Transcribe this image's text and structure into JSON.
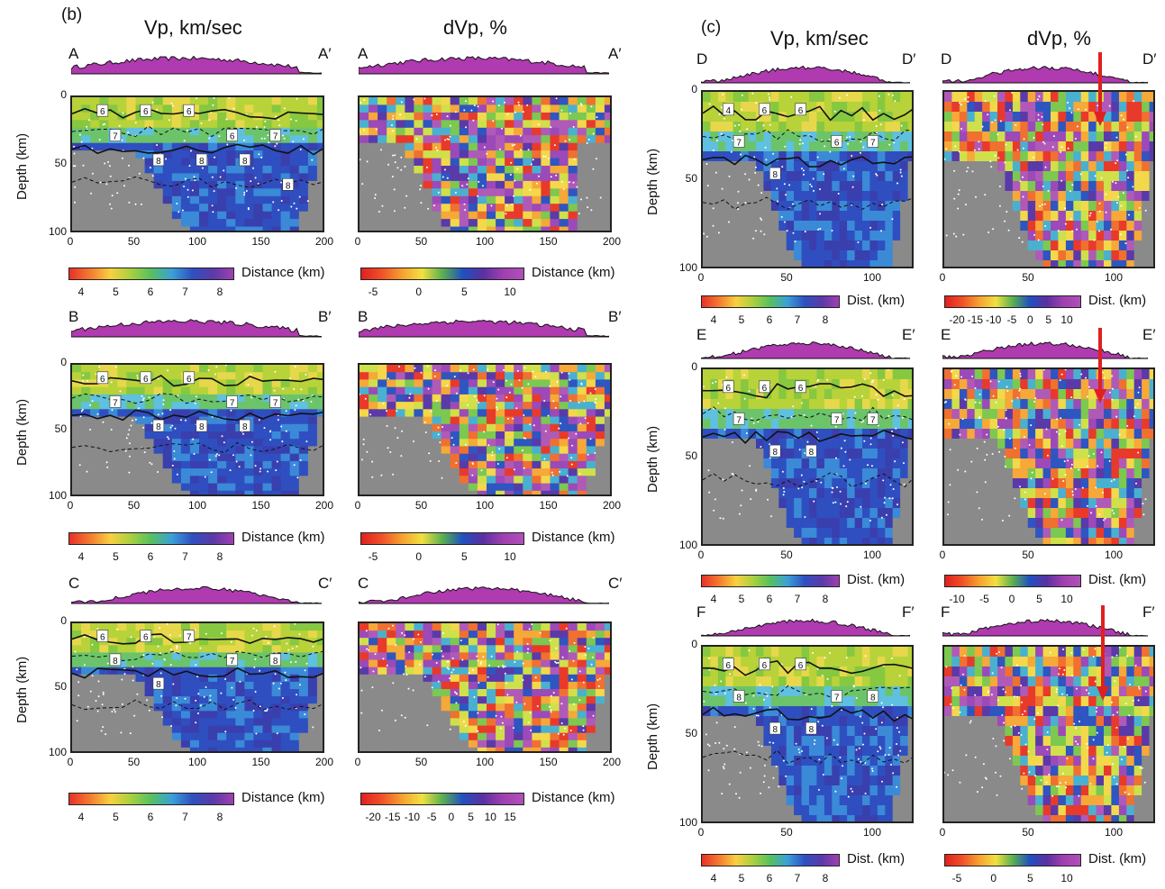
{
  "figure": {
    "labels": {
      "b": "(b)",
      "c": "(c)"
    },
    "columns": {
      "b_vp": "Vp, km/sec",
      "b_dvp": "dVp, %",
      "c_vp": "Vp, km/sec",
      "c_dvp": "dVp, %"
    },
    "y_axis_label": "Depth (km)",
    "dist_label_long": "Distance (km)",
    "dist_label_short": "Dist. (km)",
    "profiles": {
      "A": [
        "A",
        "A′"
      ],
      "B": [
        "B",
        "B′"
      ],
      "C": [
        "C",
        "C′"
      ],
      "D": [
        "D",
        "D′"
      ],
      "E": [
        "E",
        "E′"
      ],
      "F": [
        "F",
        "F′"
      ]
    },
    "ticks": {
      "depth": [
        "0",
        "50",
        "100"
      ],
      "dist200": [
        "0",
        "50",
        "100",
        "150",
        "200"
      ],
      "dist100": [
        "0",
        "50",
        "100"
      ]
    },
    "colorbars": {
      "vp": [
        "4",
        "5",
        "6",
        "7",
        "8"
      ],
      "dvp_a": [
        "-5",
        "0",
        "5",
        "10"
      ],
      "dvp_c": [
        "-20",
        "-15",
        "-10",
        "-5",
        "0",
        "5",
        "10",
        "15"
      ],
      "dvp_d": [
        "-20",
        "-15",
        "-10",
        "-5",
        "0",
        "5",
        "10"
      ],
      "dvp_e": [
        "-10",
        "-5",
        "0",
        "5",
        "10"
      ],
      "dvp_f": [
        "-5",
        "0",
        "5",
        "10"
      ]
    },
    "contours": {
      "A": [
        "6",
        "6",
        "6",
        "6",
        "7",
        "7",
        "8",
        "8",
        "8",
        "8"
      ],
      "B": [
        "6",
        "6",
        "6",
        "7",
        "7",
        "7",
        "8",
        "8",
        "8"
      ],
      "C": [
        "6",
        "6",
        "7",
        "7",
        "8",
        "8",
        "8"
      ],
      "D": [
        "4",
        "6",
        "6",
        "6",
        "7",
        "7",
        "8"
      ],
      "E": [
        "6",
        "6",
        "6",
        "7",
        "7",
        "7",
        "8",
        "8"
      ],
      "F": [
        "6",
        "6",
        "6",
        "7",
        "8",
        "8",
        "8",
        "8"
      ]
    },
    "colors": {
      "topo": "#b03ab0",
      "arrow": "#e02020"
    }
  }
}
